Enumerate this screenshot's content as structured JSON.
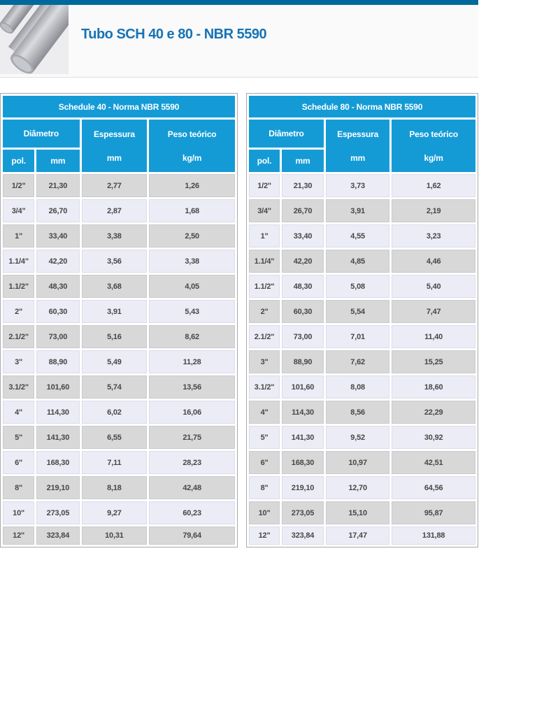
{
  "page": {
    "title": "Tubo SCH 40 e 80 - NBR 5590"
  },
  "images": {
    "hero": "three-gray-steel-pipes"
  },
  "colors": {
    "top_bar": "#00699B",
    "table_header": "#149BD6",
    "title_text": "#1773B5",
    "row_gray": "#D8D8D8",
    "row_light": "#ECECF6"
  },
  "columns": {
    "diametro": "Diâmetro",
    "pol": "pol.",
    "mm": "mm",
    "espessura": "Espessura",
    "espessura_unit": "mm",
    "peso_teorico": "Peso teórico",
    "peso_unit": "kg/m"
  },
  "tables": [
    {
      "title": "Schedule 40 - Norma NBR 5590",
      "stripe_start": "gray",
      "rows": [
        [
          "1/2\"",
          "21,30",
          "2,77",
          "1,26"
        ],
        [
          "3/4\"",
          "26,70",
          "2,87",
          "1,68"
        ],
        [
          "1\"",
          "33,40",
          "3,38",
          "2,50"
        ],
        [
          "1.1/4\"",
          "42,20",
          "3,56",
          "3,38"
        ],
        [
          "1.1/2\"",
          "48,30",
          "3,68",
          "4,05"
        ],
        [
          "2\"",
          "60,30",
          "3,91",
          "5,43"
        ],
        [
          "2.1/2\"",
          "73,00",
          "5,16",
          "8,62"
        ],
        [
          "3\"",
          "88,90",
          "5,49",
          "11,28"
        ],
        [
          "3.1/2\"",
          "101,60",
          "5,74",
          "13,56"
        ],
        [
          "4\"",
          "114,30",
          "6,02",
          "16,06"
        ],
        [
          "5\"",
          "141,30",
          "6,55",
          "21,75"
        ],
        [
          "6\"",
          "168,30",
          "7,11",
          "28,23"
        ],
        [
          "8\"",
          "219,10",
          "8,18",
          "42,48"
        ],
        [
          "10\"",
          "273,05",
          "9,27",
          "60,23"
        ],
        [
          "12\"",
          "323,84",
          "10,31",
          "79,64"
        ]
      ]
    },
    {
      "title": "Schedule 80 - Norma NBR 5590",
      "stripe_start": "light",
      "rows": [
        [
          "1/2\"",
          "21,30",
          "3,73",
          "1,62"
        ],
        [
          "3/4\"",
          "26,70",
          "3,91",
          "2,19"
        ],
        [
          "1\"",
          "33,40",
          "4,55",
          "3,23"
        ],
        [
          "1.1/4\"",
          "42,20",
          "4,85",
          "4,46"
        ],
        [
          "1.1/2\"",
          "48,30",
          "5,08",
          "5,40"
        ],
        [
          "2\"",
          "60,30",
          "5,54",
          "7,47"
        ],
        [
          "2.1/2\"",
          "73,00",
          "7,01",
          "11,40"
        ],
        [
          "3\"",
          "88,90",
          "7,62",
          "15,25"
        ],
        [
          "3.1/2\"",
          "101,60",
          "8,08",
          "18,60"
        ],
        [
          "4\"",
          "114,30",
          "8,56",
          "22,29"
        ],
        [
          "5\"",
          "141,30",
          "9,52",
          "30,92"
        ],
        [
          "6\"",
          "168,30",
          "10,97",
          "42,51"
        ],
        [
          "8\"",
          "219,10",
          "12,70",
          "64,56"
        ],
        [
          "10\"",
          "273,05",
          "15,10",
          "95,87"
        ],
        [
          "12\"",
          "323,84",
          "17,47",
          "131,88"
        ]
      ]
    }
  ]
}
